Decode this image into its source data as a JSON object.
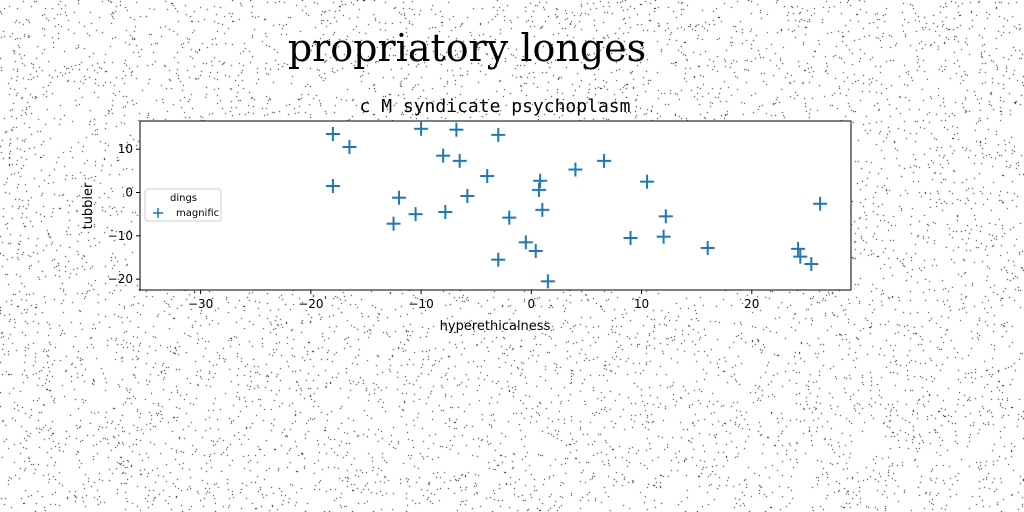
{
  "figure": {
    "suptitle": "propriatory longes"
  },
  "chart_data": {
    "type": "scatter",
    "title": "c M syndicate psychoplasm",
    "xlabel": "hyperethicalness",
    "ylabel": "tubbier",
    "xlim": [
      -35.5,
      29
    ],
    "ylim": [
      -22.5,
      16.5
    ],
    "xticks": [
      -30,
      -20,
      -10,
      0,
      10,
      20
    ],
    "yticks": [
      -20,
      -10,
      0,
      10
    ],
    "grid": false,
    "legend": {
      "placement": "center-left",
      "entries": [
        "dings",
        "magnific"
      ]
    },
    "series": [
      {
        "name": "dings",
        "marker": "none",
        "color": "#1f77b4",
        "x": [],
        "y": []
      },
      {
        "name": "magnific",
        "marker": "plus",
        "color": "#1f77b4",
        "x": [
          -18,
          -16.5,
          -18,
          -12.5,
          -12,
          -10.5,
          -10,
          -7.8,
          -8,
          -6.8,
          -6.5,
          -5.8,
          -4,
          -3,
          -3,
          -2,
          -0.5,
          0.4,
          0.8,
          0.7,
          1,
          1.5,
          4,
          6.6,
          10.5,
          9,
          12.2,
          12,
          16,
          24.2,
          24.4,
          25.4,
          26.2
        ],
        "y": [
          13.5,
          10.5,
          1.5,
          -7.2,
          -1.2,
          -5,
          14.7,
          -4.5,
          8.5,
          14.5,
          7.3,
          -0.8,
          3.8,
          13.3,
          -15.5,
          -5.8,
          -11.5,
          -13.5,
          2.7,
          0.6,
          -4,
          -20.5,
          5.3,
          7.3,
          2.5,
          -10.5,
          -5.5,
          -10.2,
          -12.8,
          -13,
          -14.8,
          -16.5,
          -2.6
        ]
      }
    ]
  }
}
